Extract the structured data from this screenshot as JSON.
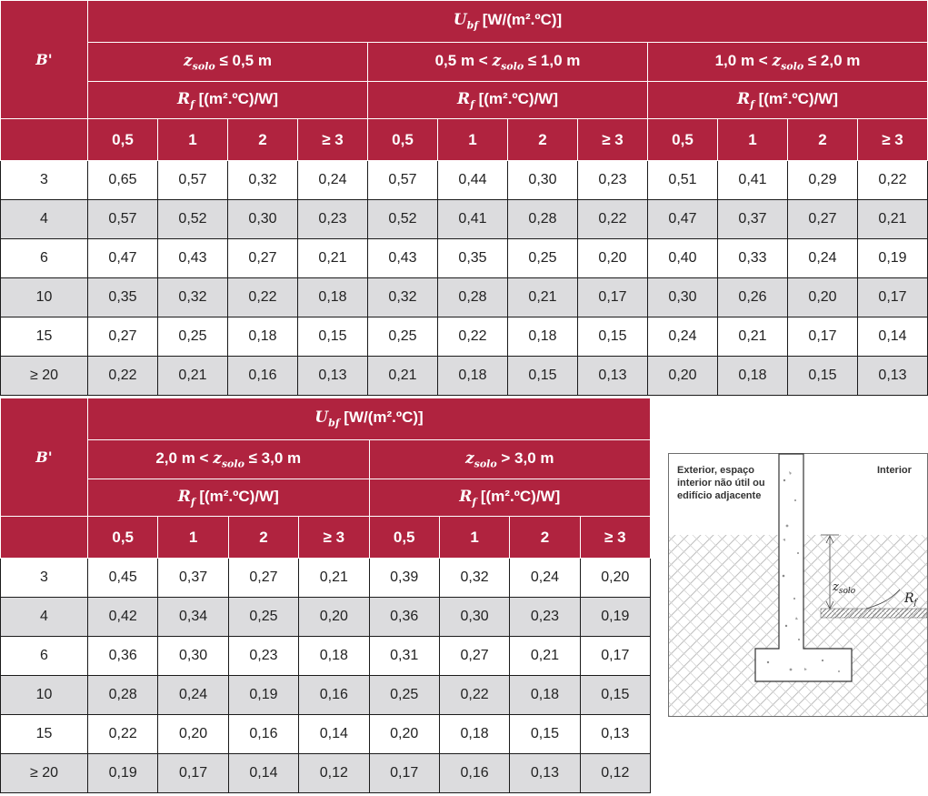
{
  "table_top": {
    "b_label": "B'",
    "u_label": "U",
    "u_sub": "bf",
    "u_unit": " [W/(m².ºC)]",
    "z_var": "z",
    "z_sub": "solo",
    "z_groups": [
      {
        "pre": "",
        "post": " ≤ 0,5 m"
      },
      {
        "pre": "0,5 m < ",
        "post": " ≤ 1,0 m"
      },
      {
        "pre": "1,0 m < ",
        "post": " ≤ 2,0 m"
      }
    ],
    "r_label": "R",
    "r_sub": "f",
    "r_unit": " [(m².ºC)/W]",
    "r_values": [
      "0,5",
      "1",
      "2",
      "≥ 3"
    ],
    "rows": [
      {
        "b": "3",
        "v": [
          "0,65",
          "0,57",
          "0,32",
          "0,24",
          "0,57",
          "0,44",
          "0,30",
          "0,23",
          "0,51",
          "0,41",
          "0,29",
          "0,22"
        ]
      },
      {
        "b": "4",
        "v": [
          "0,57",
          "0,52",
          "0,30",
          "0,23",
          "0,52",
          "0,41",
          "0,28",
          "0,22",
          "0,47",
          "0,37",
          "0,27",
          "0,21"
        ]
      },
      {
        "b": "6",
        "v": [
          "0,47",
          "0,43",
          "0,27",
          "0,21",
          "0,43",
          "0,35",
          "0,25",
          "0,20",
          "0,40",
          "0,33",
          "0,24",
          "0,19"
        ]
      },
      {
        "b": "10",
        "v": [
          "0,35",
          "0,32",
          "0,22",
          "0,18",
          "0,32",
          "0,28",
          "0,21",
          "0,17",
          "0,30",
          "0,26",
          "0,20",
          "0,17"
        ]
      },
      {
        "b": "15",
        "v": [
          "0,27",
          "0,25",
          "0,18",
          "0,15",
          "0,25",
          "0,22",
          "0,18",
          "0,15",
          "0,24",
          "0,21",
          "0,17",
          "0,14"
        ]
      },
      {
        "b": "≥ 20",
        "v": [
          "0,22",
          "0,21",
          "0,16",
          "0,13",
          "0,21",
          "0,18",
          "0,15",
          "0,13",
          "0,20",
          "0,18",
          "0,15",
          "0,13"
        ]
      }
    ]
  },
  "table_bottom": {
    "b_label": "B'",
    "u_label": "U",
    "u_sub": "bf",
    "u_unit": " [W/(m².ºC)]",
    "z_var": "z",
    "z_sub": "solo",
    "z_groups": [
      {
        "pre": "2,0 m < ",
        "post": " ≤ 3,0 m"
      },
      {
        "pre": "",
        "post": " > 3,0 m"
      }
    ],
    "r_label": "R",
    "r_sub": "f",
    "r_unit": " [(m².ºC)/W]",
    "r_values": [
      "0,5",
      "1",
      "2",
      "≥ 3"
    ],
    "rows": [
      {
        "b": "3",
        "v": [
          "0,45",
          "0,37",
          "0,27",
          "0,21",
          "0,39",
          "0,32",
          "0,24",
          "0,20"
        ]
      },
      {
        "b": "4",
        "v": [
          "0,42",
          "0,34",
          "0,25",
          "0,20",
          "0,36",
          "0,30",
          "0,23",
          "0,19"
        ]
      },
      {
        "b": "6",
        "v": [
          "0,36",
          "0,30",
          "0,23",
          "0,18",
          "0,31",
          "0,27",
          "0,21",
          "0,17"
        ]
      },
      {
        "b": "10",
        "v": [
          "0,28",
          "0,24",
          "0,19",
          "0,16",
          "0,25",
          "0,22",
          "0,18",
          "0,15"
        ]
      },
      {
        "b": "15",
        "v": [
          "0,22",
          "0,20",
          "0,16",
          "0,14",
          "0,20",
          "0,18",
          "0,15",
          "0,13"
        ]
      },
      {
        "b": "≥ 20",
        "v": [
          "0,19",
          "0,17",
          "0,14",
          "0,12",
          "0,17",
          "0,16",
          "0,13",
          "0,12"
        ]
      }
    ]
  },
  "diagram": {
    "exterior_line1": "Exterior, espaço",
    "exterior_line2": "interior não útil ou",
    "exterior_line3": "edifício adjacente",
    "interior": "Interior",
    "z_label": "z",
    "z_sub": "solo",
    "r_label": "R",
    "r_sub": "f"
  },
  "colors": {
    "header_bg": "#b0233f",
    "alt_row_bg": "#dcdcde",
    "hatch": "#8a8a8a"
  }
}
